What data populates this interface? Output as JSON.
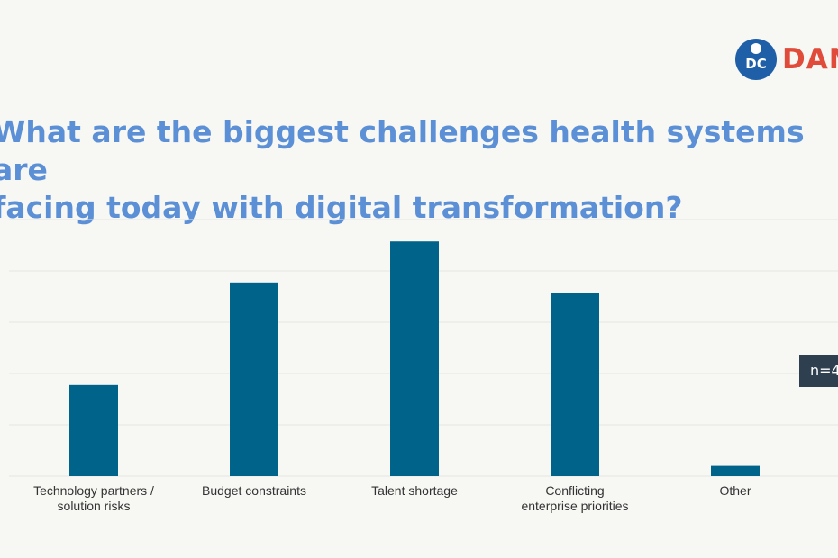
{
  "logo": {
    "text": "DAN",
    "mark_letters": "DC",
    "brand_color": "#e04b3a",
    "mark_color": "#1f5fa8"
  },
  "title": "What are the biggest challenges health systems are\nfacing today with digital transformation?",
  "note": "n=4",
  "chart_data": {
    "type": "bar",
    "title": "What are the biggest challenges health systems are facing today with digital transformation?",
    "categories": [
      "Technology partners / solution risks",
      "Budget constraints",
      "Talent shortage",
      "Conflicting enterprise priorities",
      "Other"
    ],
    "values": [
      0.355,
      0.755,
      0.915,
      0.715,
      0.04
    ],
    "ylim": [
      0,
      1
    ],
    "grid": true,
    "xlabel": "",
    "ylabel": "",
    "bar_color": "#006389",
    "grid_color": "#e4e4e0"
  }
}
